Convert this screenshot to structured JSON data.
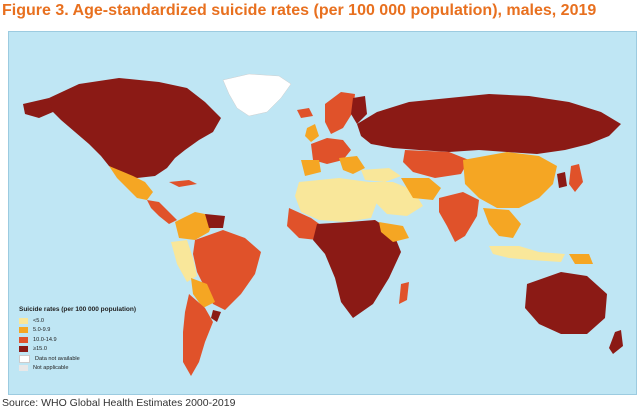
{
  "title": "Figure 3. Age-standardized suicide rates (per 100 000 population), males, 2019",
  "source": "Source: WHO Global Health Estimates 2000-2019",
  "legend": {
    "title": "Suicide rates (per 100 000 population)",
    "items": [
      {
        "label": "<5.0",
        "color": "#f9e79a"
      },
      {
        "label": "5.0-9.9",
        "color": "#f5a623"
      },
      {
        "label": "10.0-14.9",
        "color": "#e0522a"
      },
      {
        "label": "≥15.0",
        "color": "#8b1a15"
      },
      {
        "label": "Data not available",
        "color": "#ffffff"
      },
      {
        "label": "Not applicable",
        "color": "#e8e8e8"
      }
    ]
  },
  "colors": {
    "ocean": "#bfe6f4",
    "lt5": "#f9e79a",
    "r5_10": "#f5a623",
    "r10_15": "#e0522a",
    "ge15": "#8b1a15",
    "na": "#ffffff"
  }
}
